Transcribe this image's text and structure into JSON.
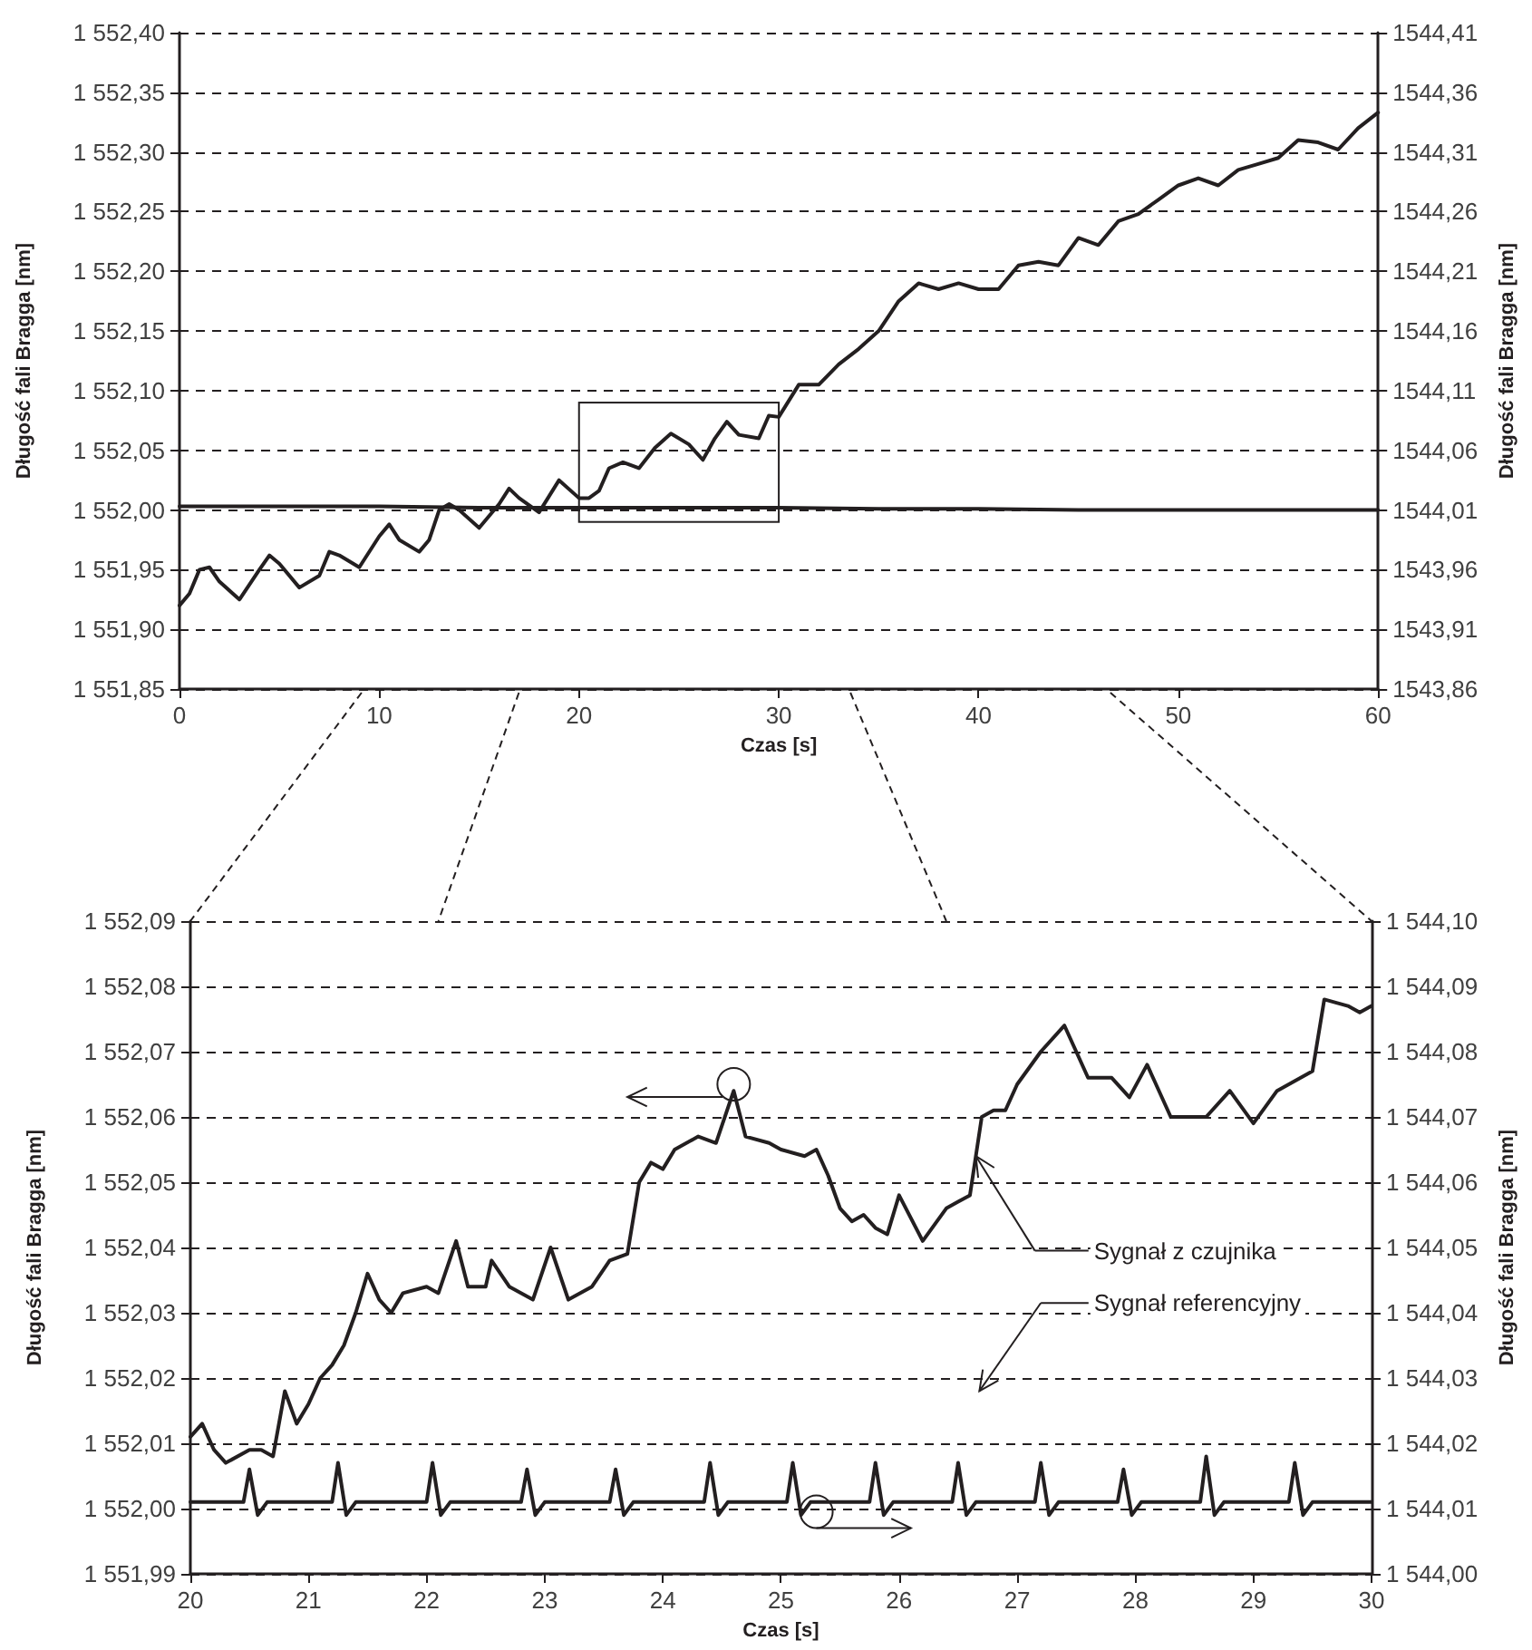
{
  "chart_data": [
    {
      "type": "line",
      "xlabel": "Czas [s]",
      "ylabel": "Długość fali Bragga [nm]",
      "y2label": "Długość fali Bragga [nm]",
      "xlim": [
        0,
        60
      ],
      "xticks": [
        0,
        10,
        20,
        30,
        40,
        50,
        60
      ],
      "ylim": [
        1551.85,
        1552.4
      ],
      "yticks": [
        {
          "value": 1551.85,
          "label": "1 551,85"
        },
        {
          "value": 1551.9,
          "label": "1 551,90"
        },
        {
          "value": 1551.95,
          "label": "1 551,95"
        },
        {
          "value": 1552.0,
          "label": "1 552,00"
        },
        {
          "value": 1552.05,
          "label": "1 552,05"
        },
        {
          "value": 1552.1,
          "label": "1 552,10"
        },
        {
          "value": 1552.15,
          "label": "1 552,15"
        },
        {
          "value": 1552.2,
          "label": "1 552,20"
        },
        {
          "value": 1552.25,
          "label": "1 552,25"
        },
        {
          "value": 1552.3,
          "label": "1 552,30"
        },
        {
          "value": 1552.35,
          "label": "1 552,35"
        },
        {
          "value": 1552.4,
          "label": "1 552,40"
        }
      ],
      "y2lim": [
        1543.86,
        1544.41
      ],
      "y2ticks": [
        {
          "value": 1543.86,
          "label": "1543,86"
        },
        {
          "value": 1543.91,
          "label": "1543,91"
        },
        {
          "value": 1543.96,
          "label": "1543,96"
        },
        {
          "value": 1544.01,
          "label": "1544,01"
        },
        {
          "value": 1544.06,
          "label": "1544,06"
        },
        {
          "value": 1544.11,
          "label": "1544,11"
        },
        {
          "value": 1544.16,
          "label": "1544,16"
        },
        {
          "value": 1544.21,
          "label": "1544,21"
        },
        {
          "value": 1544.26,
          "label": "1544,26"
        },
        {
          "value": 1544.31,
          "label": "1544,31"
        },
        {
          "value": 1544.36,
          "label": "1544,36"
        },
        {
          "value": 1544.41,
          "label": "1544,41"
        }
      ],
      "grid": "y",
      "marker": "none",
      "line_style": "solid",
      "series": [
        {
          "color": "#231f20",
          "x": [
            0,
            0.5,
            1,
            1.5,
            2,
            3,
            4,
            4.5,
            5,
            6,
            7,
            7.5,
            8,
            9,
            10,
            10.5,
            11,
            12,
            12.5,
            13,
            13.5,
            14,
            15,
            16,
            16.5,
            17,
            18,
            19,
            20,
            20.5,
            21,
            21.5,
            22.2,
            23,
            23.8,
            24.6,
            25.5,
            26.2,
            26.8,
            27.4,
            28,
            29,
            29.5,
            30,
            31,
            32,
            33,
            34,
            35,
            36,
            37,
            38,
            39,
            40,
            41,
            42,
            43,
            44,
            45,
            46,
            47,
            48,
            49,
            50,
            51,
            52,
            53,
            54,
            55,
            56,
            57,
            58,
            59,
            60
          ],
          "values": [
            1551.92,
            1551.93,
            1551.95,
            1551.952,
            1551.94,
            1551.925,
            1551.95,
            1551.962,
            1551.955,
            1551.935,
            1551.945,
            1551.965,
            1551.962,
            1551.952,
            1551.978,
            1551.988,
            1551.975,
            1551.965,
            1551.975,
            1552.0,
            1552.005,
            1552.0,
            1551.985,
            1552.005,
            1552.018,
            1552.01,
            1551.998,
            1552.025,
            1552.01,
            1552.01,
            1552.016,
            1552.035,
            1552.04,
            1552.035,
            1552.052,
            1552.064,
            1552.055,
            1552.042,
            1552.06,
            1552.074,
            1552.063,
            1552.06,
            1552.079,
            1552.078,
            1552.105,
            1552.105,
            1552.122,
            1552.135,
            1552.15,
            1552.175,
            1552.19,
            1552.185,
            1552.19,
            1552.185,
            1552.185,
            1552.205,
            1552.208,
            1552.205,
            1552.228,
            1552.222,
            1552.242,
            1552.248,
            1552.26,
            1552.272,
            1552.278,
            1552.272,
            1552.285,
            1552.29,
            1552.295,
            1552.31,
            1552.308,
            1552.302,
            1552.32,
            1552.333
          ]
        },
        {
          "color": "#231f20",
          "axis": "y2",
          "x": [
            0,
            5,
            10,
            15,
            20,
            25,
            30,
            35,
            40,
            45,
            50,
            55,
            60
          ],
          "values": [
            1544.013,
            1544.013,
            1544.013,
            1544.012,
            1544.012,
            1544.012,
            1544.012,
            1544.011,
            1544.011,
            1544.01,
            1544.01,
            1544.01,
            1544.01
          ]
        }
      ]
    },
    {
      "type": "line",
      "xlabel": "Czas [s]",
      "ylabel": "Długość fali Bragga [nm]",
      "y2label": "Długość fali Bragga [nm]",
      "xlim": [
        20,
        30
      ],
      "xticks": [
        20,
        21,
        22,
        23,
        24,
        25,
        26,
        27,
        28,
        29,
        30
      ],
      "ylim": [
        1551.99,
        1552.09
      ],
      "yticks": [
        {
          "value": 1551.99,
          "label": "1 551,99"
        },
        {
          "value": 1552.0,
          "label": "1 552,00"
        },
        {
          "value": 1552.01,
          "label": "1 552,01"
        },
        {
          "value": 1552.02,
          "label": "1 552,02"
        },
        {
          "value": 1552.03,
          "label": "1 552,03"
        },
        {
          "value": 1552.04,
          "label": "1 552,04"
        },
        {
          "value": 1552.05,
          "label": "1 552,05"
        },
        {
          "value": 1552.06,
          "label": "1 552,06"
        },
        {
          "value": 1552.07,
          "label": "1 552,07"
        },
        {
          "value": 1552.08,
          "label": "1 552,08"
        },
        {
          "value": 1552.09,
          "label": "1 552,09"
        }
      ],
      "y2lim": [
        1544.0,
        1544.1
      ],
      "y2ticks": [
        {
          "value": 1544.0,
          "label": "1 544,00"
        },
        {
          "value": 1544.01,
          "label": "1 544,01"
        },
        {
          "value": 1544.02,
          "label": "1 544,02"
        },
        {
          "value": 1544.03,
          "label": "1 544,03"
        },
        {
          "value": 1544.04,
          "label": "1 544,04"
        },
        {
          "value": 1544.05,
          "label": "1 544,05"
        },
        {
          "value": 1544.06,
          "label": "1 544,06"
        },
        {
          "value": 1544.07,
          "label": "1 544,07"
        },
        {
          "value": 1544.08,
          "label": "1 544,08"
        },
        {
          "value": 1544.09,
          "label": "1 544,09"
        },
        {
          "value": 1544.1,
          "label": "1 544,10"
        }
      ],
      "grid": "y",
      "marker": "none",
      "line_style": "solid",
      "annotations": [
        "Sygnał z czujnika",
        "Sygnał referencyjny"
      ],
      "series": [
        {
          "color": "#231f20",
          "x": [
            20,
            20.1,
            20.2,
            20.3,
            20.5,
            20.6,
            20.7,
            20.8,
            20.9,
            21,
            21.1,
            21.2,
            21.3,
            21.4,
            21.5,
            21.6,
            21.7,
            21.8,
            22,
            22.1,
            22.25,
            22.35,
            22.5,
            22.55,
            22.7,
            22.9,
            23.05,
            23.2,
            23.4,
            23.55,
            23.7,
            23.8,
            23.9,
            24,
            24.1,
            24.3,
            24.45,
            24.6,
            24.7,
            24.9,
            25,
            25.2,
            25.3,
            25.4,
            25.5,
            25.6,
            25.7,
            25.8,
            25.9,
            26,
            26.2,
            26.4,
            26.5,
            26.6,
            26.7,
            26.8,
            26.9,
            27,
            27.2,
            27.4,
            27.6,
            27.8,
            27.95,
            28.1,
            28.3,
            28.5,
            28.6,
            28.8,
            29,
            29.2,
            29.4,
            29.5,
            29.6,
            29.8,
            29.9,
            30
          ],
          "values": [
            1552.011,
            1552.013,
            1552.009,
            1552.007,
            1552.009,
            1552.009,
            1552.008,
            1552.018,
            1552.013,
            1552.016,
            1552.02,
            1552.022,
            1552.025,
            1552.03,
            1552.036,
            1552.032,
            1552.03,
            1552.033,
            1552.034,
            1552.033,
            1552.041,
            1552.034,
            1552.034,
            1552.038,
            1552.034,
            1552.032,
            1552.04,
            1552.032,
            1552.034,
            1552.038,
            1552.039,
            1552.05,
            1552.053,
            1552.052,
            1552.055,
            1552.057,
            1552.056,
            1552.064,
            1552.057,
            1552.056,
            1552.055,
            1552.054,
            1552.055,
            1552.051,
            1552.046,
            1552.044,
            1552.045,
            1552.043,
            1552.042,
            1552.048,
            1552.041,
            1552.046,
            1552.047,
            1552.048,
            1552.06,
            1552.061,
            1552.061,
            1552.065,
            1552.07,
            1552.074,
            1552.066,
            1552.066,
            1552.063,
            1552.068,
            1552.06,
            1552.06,
            1552.06,
            1552.064,
            1552.059,
            1552.064,
            1552.066,
            1552.067,
            1552.078,
            1552.077,
            1552.076,
            1552.077
          ]
        },
        {
          "color": "#231f20",
          "axis": "y2",
          "x": [
            20,
            20.45,
            20.5,
            20.57,
            20.65,
            21.2,
            21.25,
            21.32,
            21.4,
            22.0,
            22.05,
            22.12,
            22.2,
            22.8,
            22.85,
            22.92,
            23.0,
            23.55,
            23.6,
            23.67,
            23.75,
            24.35,
            24.4,
            24.47,
            24.55,
            25.05,
            25.1,
            25.17,
            25.25,
            25.75,
            25.8,
            25.87,
            25.95,
            26.45,
            26.5,
            26.57,
            26.65,
            27.15,
            27.2,
            27.27,
            27.35,
            27.85,
            27.9,
            27.97,
            28.05,
            28.55,
            28.6,
            28.67,
            28.75,
            29.3,
            29.35,
            29.42,
            29.5,
            30
          ],
          "values": [
            1544.011,
            1544.011,
            1544.016,
            1544.009,
            1544.011,
            1544.011,
            1544.017,
            1544.009,
            1544.011,
            1544.011,
            1544.017,
            1544.009,
            1544.011,
            1544.011,
            1544.016,
            1544.009,
            1544.011,
            1544.011,
            1544.016,
            1544.009,
            1544.011,
            1544.011,
            1544.017,
            1544.009,
            1544.011,
            1544.011,
            1544.017,
            1544.009,
            1544.011,
            1544.011,
            1544.017,
            1544.009,
            1544.011,
            1544.011,
            1544.017,
            1544.009,
            1544.011,
            1544.011,
            1544.017,
            1544.009,
            1544.011,
            1544.011,
            1544.016,
            1544.009,
            1544.011,
            1544.011,
            1544.018,
            1544.009,
            1544.011,
            1544.011,
            1544.017,
            1544.009,
            1544.011,
            1544.011
          ]
        }
      ]
    }
  ]
}
